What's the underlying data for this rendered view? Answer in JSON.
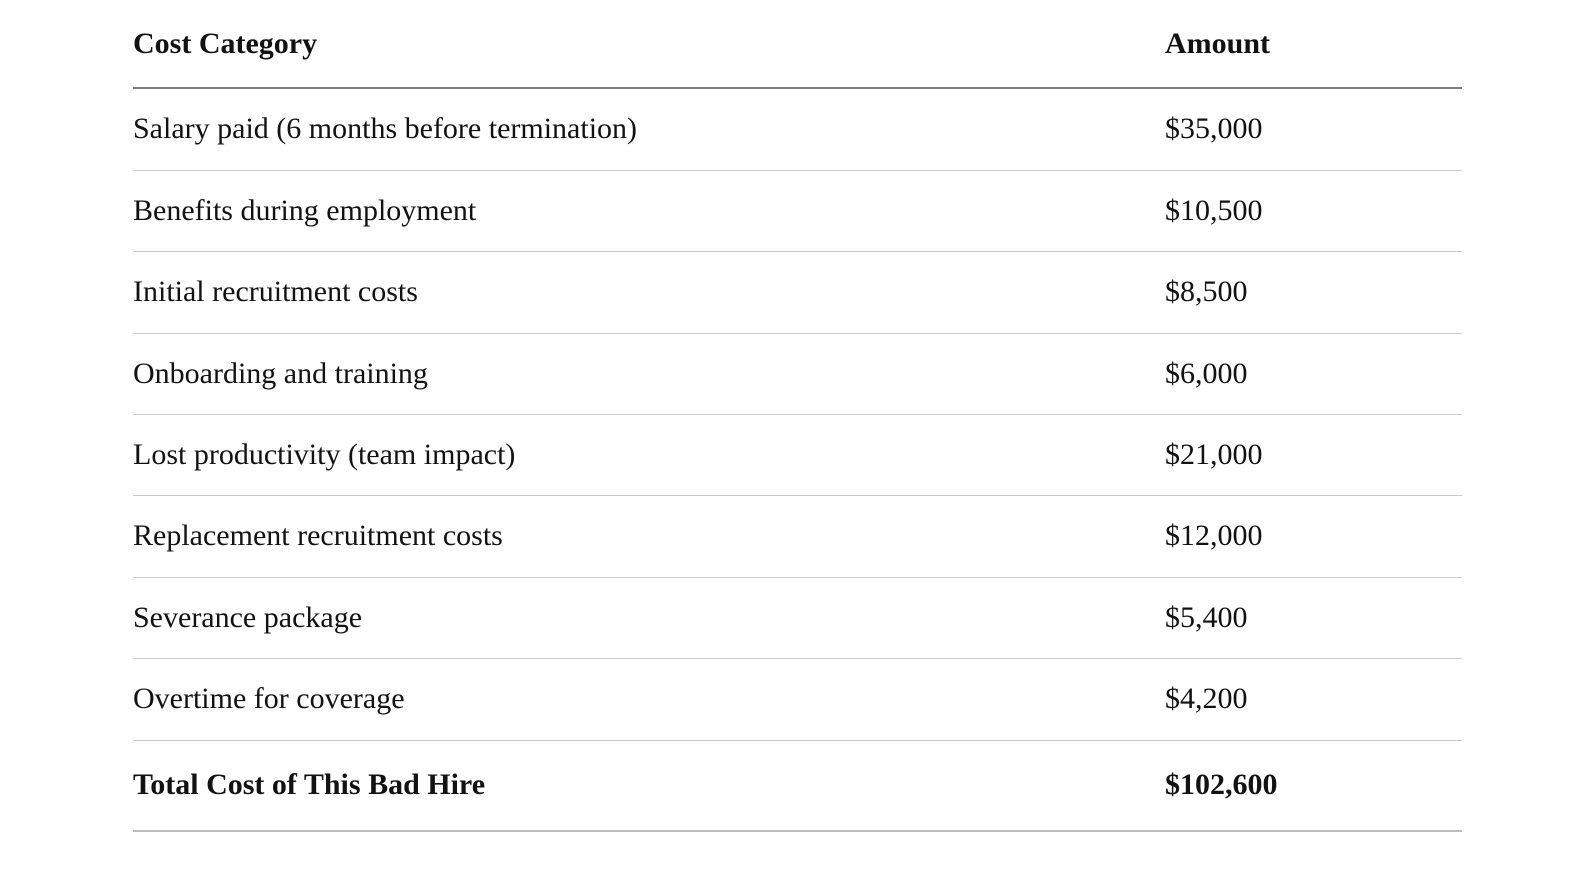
{
  "table": {
    "columns": [
      {
        "label": "Cost Category"
      },
      {
        "label": "Amount"
      }
    ],
    "rows": [
      {
        "category": "Salary paid (6 months before termination)",
        "amount": "$35,000"
      },
      {
        "category": "Benefits during employment",
        "amount": "$10,500"
      },
      {
        "category": "Initial recruitment costs",
        "amount": "$8,500"
      },
      {
        "category": "Onboarding and training",
        "amount": "$6,000"
      },
      {
        "category": "Lost productivity (team impact)",
        "amount": "$21,000"
      },
      {
        "category": "Replacement recruitment costs",
        "amount": "$12,000"
      },
      {
        "category": "Severance package",
        "amount": "$5,400"
      },
      {
        "category": "Overtime for coverage",
        "amount": "$4,200"
      }
    ],
    "total_row": {
      "category": "Total Cost of This Bad Hire",
      "amount": "$102,600"
    },
    "colors": {
      "text": "#121212",
      "header_rule": "#7e7e7e",
      "row_rule": "#cccccc",
      "bottom_rule": "#bdbdbd",
      "background": "#ffffff"
    }
  }
}
